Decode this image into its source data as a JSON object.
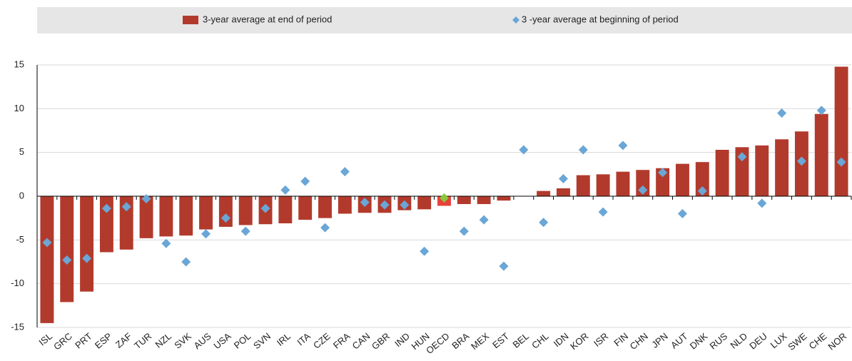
{
  "chart_data": {
    "type": "bar",
    "categories": [
      "ISL",
      "GRC",
      "PRT",
      "ESP",
      "ZAF",
      "TUR",
      "NZL",
      "SVK",
      "AUS",
      "USA",
      "POL",
      "SVN",
      "IRL",
      "ITA",
      "CZE",
      "FRA",
      "CAN",
      "GBR",
      "IND",
      "HUN",
      "OECD",
      "BRA",
      "MEX",
      "EST",
      "BEL",
      "CHL",
      "IDN",
      "KOR",
      "ISR",
      "FIN",
      "CHN",
      "JPN",
      "AUT",
      "DNK",
      "RUS",
      "NLD",
      "DEU",
      "LUX",
      "SWE",
      "CHE",
      "NOR"
    ],
    "series": [
      {
        "name": "3-year average at end of period",
        "type": "bar",
        "color": "#b23a2c",
        "highlight_color": "#e8403a",
        "values": [
          -14.5,
          -12.1,
          -10.9,
          -6.4,
          -6.1,
          -4.8,
          -4.6,
          -4.5,
          -3.8,
          -3.5,
          -3.3,
          -3.2,
          -3.1,
          -2.7,
          -2.5,
          -2.0,
          -1.9,
          -1.9,
          -1.6,
          -1.5,
          -1.1,
          -0.9,
          -0.9,
          -0.5,
          0,
          0.6,
          0.9,
          2.4,
          2.5,
          2.8,
          3.0,
          3.2,
          3.7,
          3.9,
          5.3,
          5.6,
          5.8,
          6.5,
          7.4,
          9.4,
          14.8
        ]
      },
      {
        "name": "3 -year average at beginning of period",
        "type": "scatter",
        "color": "#6aa6d6",
        "highlight_color": "#8cc63f",
        "values": [
          -5.3,
          -7.3,
          -7.1,
          -1.4,
          -1.2,
          -0.3,
          -5.4,
          -7.5,
          -4.3,
          -2.5,
          -4.0,
          -1.4,
          0.7,
          1.7,
          -3.6,
          2.8,
          -0.7,
          -1.0,
          -1.0,
          -6.3,
          -0.2,
          -4.0,
          -2.7,
          -8.0,
          5.3,
          -3.0,
          2.0,
          5.3,
          -1.8,
          5.8,
          0.7,
          2.7,
          -2.0,
          0.6,
          null,
          4.5,
          -0.8,
          9.5,
          4.0,
          9.8,
          3.9
        ]
      }
    ],
    "highlight_category": "OECD",
    "ylim": [
      -15,
      15
    ],
    "yticks": [
      -15,
      -10,
      -5,
      0,
      5,
      10,
      15
    ],
    "grid": true,
    "legend": "top"
  }
}
